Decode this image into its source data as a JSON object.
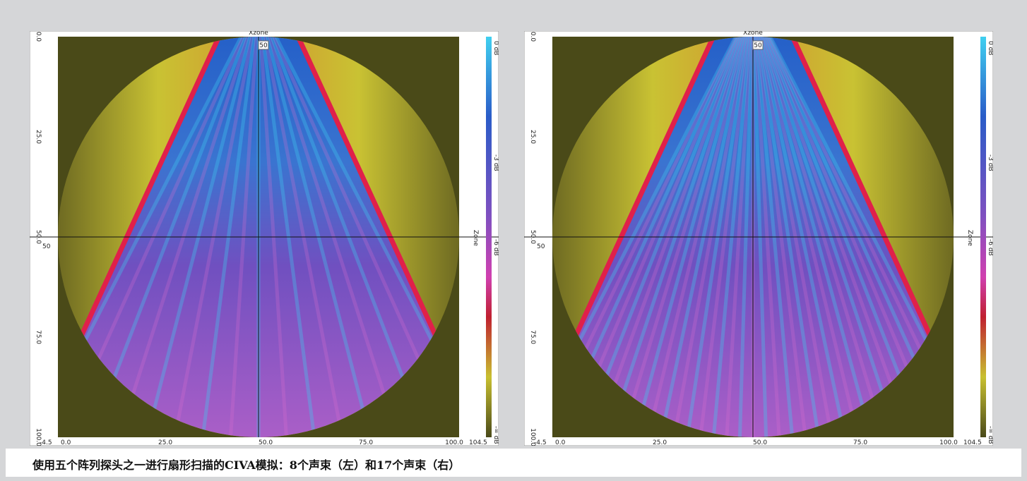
{
  "panels": [
    {
      "title": "Xzone",
      "cursor_x": "50",
      "cursor_z": "50",
      "y_ticks": [
        "0.0",
        "25.0",
        "50.0",
        "75.0",
        "100.0"
      ],
      "x_ticks": [
        "-4.5",
        "0.0",
        "25.0",
        "50.0",
        "75.0",
        "100.0",
        "104.5"
      ],
      "colorbar_labels": [
        "0 dB",
        "-3 dB",
        "-6 dB",
        "-∞ dB"
      ],
      "colorbar_title": "Zone"
    },
    {
      "title": "Xzone",
      "cursor_x": "50",
      "cursor_z": "50",
      "y_ticks": [
        "0.0",
        "25.0",
        "50.0",
        "75.0",
        "100.0"
      ],
      "x_ticks": [
        "-4.5",
        "0.0",
        "25.0",
        "50.0",
        "75.0",
        "100.0",
        "104.5"
      ],
      "colorbar_labels": [
        "0 dB",
        "-3 dB",
        "-6 dB",
        "-∞ dB"
      ],
      "colorbar_title": "Zone"
    }
  ],
  "caption": "使用五个阵列探头之一进行扇形扫描的CIVA模拟：8个声束（左）和17个声束（右）"
}
